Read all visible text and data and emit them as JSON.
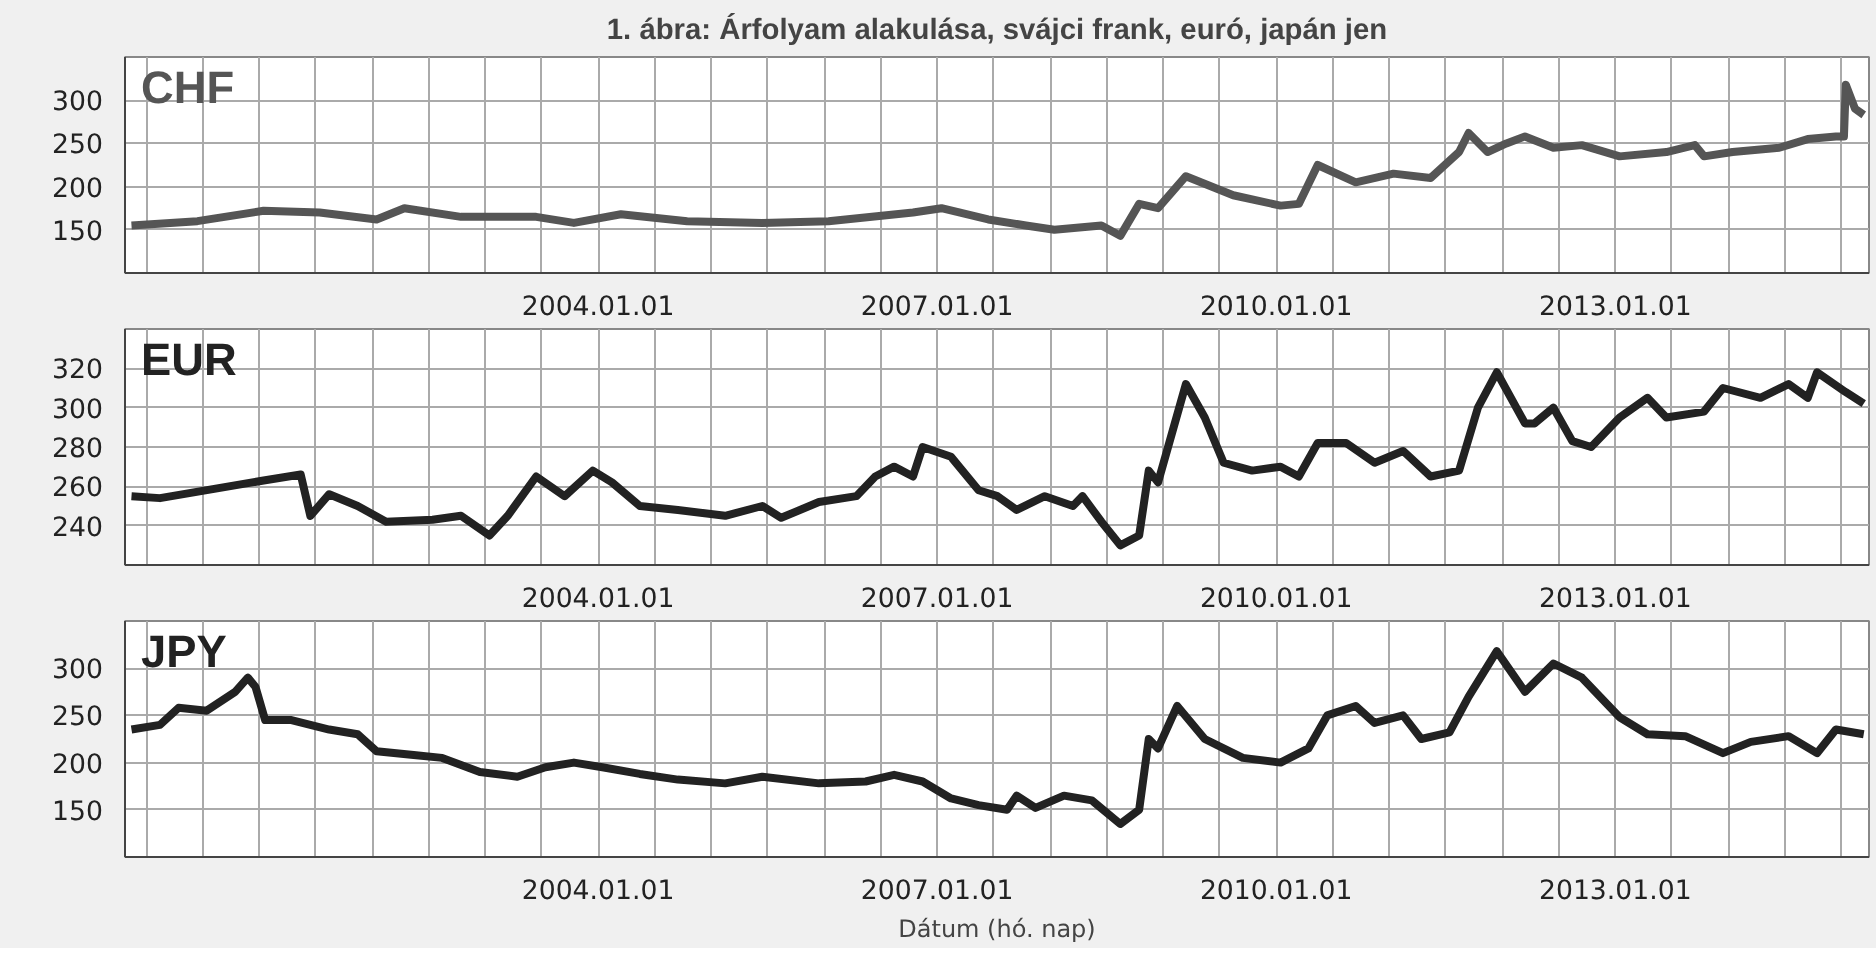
{
  "chart_data": [
    {
      "type": "line",
      "title": "1. ábra: Árfolyam alakulása, svájci frank, euró, japán jen",
      "xlim": [
        "1999-10-25",
        "2015-04-01"
      ],
      "ylim": [
        100,
        350
      ],
      "yticks": [
        150,
        200,
        250,
        300
      ],
      "xticks": [
        {
          "value": "2000-01-01",
          "label": null
        },
        {
          "value": "2000-07-01",
          "label": null
        },
        {
          "value": "2001-01-01",
          "label": null
        },
        {
          "value": "2001-07-01",
          "label": null
        },
        {
          "value": "2002-01-01",
          "label": null
        },
        {
          "value": "2002-07-01",
          "label": null
        },
        {
          "value": "2003-01-01",
          "label": null
        },
        {
          "value": "2003-07-01",
          "label": null
        },
        {
          "value": "2004-01-01",
          "label": "2004.01.01"
        },
        {
          "value": "2004-07-01",
          "label": null
        },
        {
          "value": "2005-01-01",
          "label": null
        },
        {
          "value": "2005-07-01",
          "label": null
        },
        {
          "value": "2006-01-01",
          "label": null
        },
        {
          "value": "2006-07-01",
          "label": null
        },
        {
          "value": "2007-01-01",
          "label": "2007.01.01"
        },
        {
          "value": "2007-07-01",
          "label": null
        },
        {
          "value": "2008-01-01",
          "label": null
        },
        {
          "value": "2008-07-01",
          "label": null
        },
        {
          "value": "2009-01-01",
          "label": null
        },
        {
          "value": "2009-07-01",
          "label": null
        },
        {
          "value": "2010-01-01",
          "label": "2010.01.01"
        },
        {
          "value": "2010-07-01",
          "label": null
        },
        {
          "value": "2011-01-01",
          "label": null
        },
        {
          "value": "2011-07-01",
          "label": null
        },
        {
          "value": "2012-01-01",
          "label": null
        },
        {
          "value": "2012-07-01",
          "label": null
        },
        {
          "value": "2013-01-01",
          "label": "2013.01.01"
        },
        {
          "value": "2013-07-01",
          "label": null
        },
        {
          "value": "2014-01-01",
          "label": null
        },
        {
          "value": "2014-07-01",
          "label": null
        },
        {
          "value": "2015-01-01",
          "label": null
        }
      ],
      "grid": true,
      "line_style": "solid",
      "series": [
        {
          "name": "CHF",
          "color": "#555555",
          "x": [
            "1999-11",
            "2000-06",
            "2001-01",
            "2001-07",
            "2002-01",
            "2002-04",
            "2002-10",
            "2003-06",
            "2003-10",
            "2004-03",
            "2004-10",
            "2005-06",
            "2006-01",
            "2006-10",
            "2007-01",
            "2007-06",
            "2007-10",
            "2008-01",
            "2008-06",
            "2008-08",
            "2008-10",
            "2008-12",
            "2009-03",
            "2009-08",
            "2010-01",
            "2010-03",
            "2010-05",
            "2010-09",
            "2011-01",
            "2011-05",
            "2011-08",
            "2011-09",
            "2011-11",
            "2012-01",
            "2012-03",
            "2012-06",
            "2012-09",
            "2013-01",
            "2013-06",
            "2013-09",
            "2013-10",
            "2014-01",
            "2014-06",
            "2014-09",
            "2014-12",
            "2015-01-10",
            "2015-01-16",
            "2015-02",
            "2015-03"
          ],
          "values": [
            155,
            160,
            172,
            170,
            162,
            175,
            165,
            165,
            158,
            168,
            160,
            158,
            160,
            170,
            175,
            162,
            155,
            150,
            155,
            143,
            180,
            175,
            212,
            190,
            178,
            180,
            225,
            205,
            215,
            210,
            240,
            262,
            240,
            250,
            258,
            245,
            248,
            235,
            240,
            248,
            235,
            240,
            245,
            255,
            258,
            258,
            318,
            290,
            283
          ]
        }
      ]
    },
    {
      "type": "line",
      "xlim": [
        "1999-10-25",
        "2015-04-01"
      ],
      "ylim": [
        220,
        340
      ],
      "yticks": [
        240,
        260,
        280,
        300,
        320
      ],
      "grid": true,
      "line_style": "solid",
      "series": [
        {
          "name": "EUR",
          "color": "#222222",
          "x": [
            "1999-11",
            "2000-02",
            "2001-01",
            "2001-05",
            "2001-06",
            "2001-08",
            "2001-11",
            "2002-02",
            "2002-07",
            "2002-10",
            "2003-01",
            "2003-03",
            "2003-06",
            "2003-09",
            "2003-12",
            "2004-02",
            "2004-05",
            "2004-09",
            "2005-02",
            "2005-06",
            "2005-08",
            "2005-12",
            "2006-04",
            "2006-06",
            "2006-08",
            "2006-10",
            "2006-11",
            "2007-02",
            "2007-05",
            "2007-07",
            "2007-09",
            "2007-12",
            "2008-03",
            "2008-04",
            "2008-06",
            "2008-08",
            "2008-10",
            "2008-11",
            "2008-12",
            "2009-03",
            "2009-05",
            "2009-07",
            "2009-10",
            "2010-01",
            "2010-03",
            "2010-05",
            "2010-08",
            "2010-11",
            "2011-02",
            "2011-05",
            "2011-08",
            "2011-10",
            "2011-12",
            "2012-03",
            "2012-04",
            "2012-06",
            "2012-08",
            "2012-10",
            "2013-01",
            "2013-04",
            "2013-06",
            "2013-10",
            "2013-12",
            "2014-04",
            "2014-07",
            "2014-09",
            "2014-10",
            "2015-01",
            "2015-03"
          ],
          "values": [
            255,
            254,
            263,
            266,
            245,
            256,
            250,
            242,
            243,
            245,
            235,
            245,
            265,
            255,
            268,
            262,
            250,
            248,
            245,
            250,
            244,
            252,
            255,
            265,
            270,
            265,
            280,
            275,
            258,
            255,
            248,
            255,
            250,
            255,
            242,
            230,
            235,
            268,
            262,
            312,
            295,
            272,
            268,
            270,
            265,
            282,
            282,
            272,
            278,
            265,
            268,
            300,
            318,
            292,
            292,
            300,
            283,
            280,
            295,
            305,
            295,
            298,
            310,
            305,
            312,
            305,
            318,
            308,
            302
          ]
        }
      ]
    },
    {
      "type": "line",
      "xlabel": "Dátum (hó. nap)",
      "xlim": [
        "1999-10-25",
        "2015-04-01"
      ],
      "ylim": [
        100,
        350
      ],
      "yticks": [
        150,
        200,
        250,
        300
      ],
      "grid": true,
      "line_style": "solid",
      "series": [
        {
          "name": "JPY",
          "color": "#222222",
          "x": [
            "1999-11",
            "2000-02",
            "2000-04",
            "2000-07",
            "2000-10",
            "2000-11-25",
            "2000-12-20",
            "2001-01-20",
            "2001-04",
            "2001-08",
            "2001-11",
            "2002-01",
            "2002-05",
            "2002-08",
            "2002-12",
            "2003-04",
            "2003-07",
            "2003-10",
            "2004-01",
            "2004-05",
            "2004-09",
            "2005-02",
            "2005-06",
            "2005-12",
            "2006-05",
            "2006-08",
            "2006-11",
            "2007-02",
            "2007-05",
            "2007-08",
            "2007-09",
            "2007-11",
            "2008-02",
            "2008-05",
            "2008-08",
            "2008-10",
            "2008-11",
            "2008-12",
            "2009-02",
            "2009-05",
            "2009-09",
            "2010-01",
            "2010-04",
            "2010-06",
            "2010-09",
            "2010-11",
            "2011-02",
            "2011-04",
            "2011-07",
            "2011-09",
            "2011-12",
            "2012-03",
            "2012-06",
            "2012-09",
            "2013-01",
            "2013-04",
            "2013-08",
            "2013-12",
            "2014-03",
            "2014-07",
            "2014-10",
            "2014-12",
            "2015-03"
          ],
          "values": [
            235,
            240,
            258,
            255,
            275,
            290,
            280,
            245,
            245,
            235,
            230,
            212,
            208,
            205,
            190,
            185,
            195,
            200,
            195,
            188,
            182,
            178,
            185,
            178,
            180,
            187,
            180,
            162,
            155,
            150,
            165,
            152,
            165,
            160,
            135,
            150,
            225,
            215,
            260,
            225,
            205,
            200,
            215,
            250,
            260,
            242,
            250,
            225,
            232,
            270,
            318,
            275,
            305,
            290,
            248,
            230,
            228,
            210,
            222,
            228,
            210,
            235,
            230
          ]
        }
      ]
    }
  ]
}
